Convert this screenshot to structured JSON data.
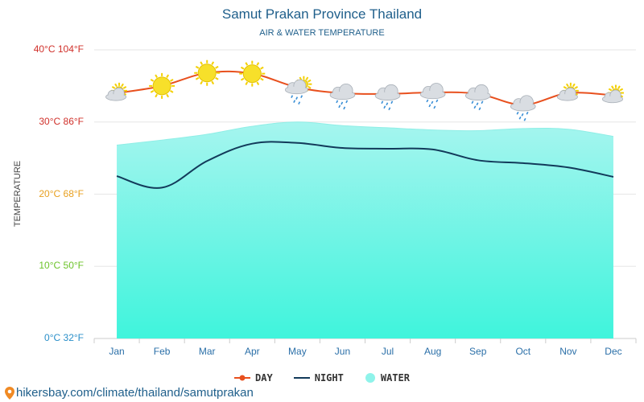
{
  "title": "Samut Prakan Province Thailand",
  "subtitle": "AIR & WATER TEMPERATURE",
  "ylabel": "TEMPERATURE",
  "yticks": [
    {
      "label": "40°C 104°F",
      "color": "#d0302a"
    },
    {
      "label": "30°C 86°F",
      "color": "#d0302a"
    },
    {
      "label": "20°C 68°F",
      "color": "#e8a020"
    },
    {
      "label": "10°C 50°F",
      "color": "#6cc32a"
    },
    {
      "label": "0°C 32°F",
      "color": "#2a8fc9"
    }
  ],
  "legend": {
    "day": "DAY",
    "night": "NIGHT",
    "water": "WATER"
  },
  "footer": "hikersbay.com/climate/thailand/samutprakan",
  "colors": {
    "day": "#e8501e",
    "night": "#123a5a",
    "water_top": "#a6f5ef",
    "water_bottom": "#3ff4dc"
  },
  "chart_data": {
    "type": "line",
    "categories": [
      "Jan",
      "Feb",
      "Mar",
      "Apr",
      "May",
      "Jun",
      "Jul",
      "Aug",
      "Sep",
      "Oct",
      "Nov",
      "Dec"
    ],
    "ylim": [
      0,
      40
    ],
    "series": [
      {
        "name": "DAY",
        "values": [
          34.0,
          35.0,
          36.8,
          36.7,
          34.8,
          34.0,
          33.9,
          34.1,
          33.9,
          32.4,
          34.0,
          33.7
        ]
      },
      {
        "name": "NIGHT",
        "values": [
          22.5,
          20.9,
          24.6,
          27.0,
          27.1,
          26.4,
          26.3,
          26.2,
          24.7,
          24.3,
          23.7,
          22.4
        ]
      },
      {
        "name": "WATER",
        "values": [
          26.8,
          27.5,
          28.3,
          29.4,
          30.0,
          29.5,
          29.2,
          28.9,
          28.8,
          29.1,
          29.0,
          28.0
        ]
      }
    ],
    "weather_icons": [
      "sun-cloud-icon",
      "sun-icon",
      "sun-icon",
      "sun-icon",
      "sun-cloud-rain-icon",
      "cloud-rain-icon",
      "cloud-rain-icon",
      "cloud-rain-icon",
      "cloud-rain-icon",
      "cloud-rain-icon",
      "sun-cloud-icon",
      "sun-cloud-icon"
    ],
    "grid": true,
    "legend_position": "bottom-center"
  }
}
